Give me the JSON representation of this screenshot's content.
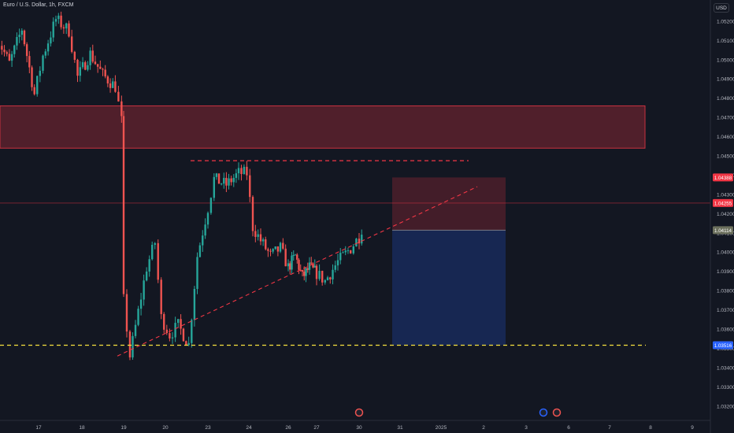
{
  "title": "Euro / U.S. Dollar, 1h, FXCM",
  "currency_label": "USD",
  "colors": {
    "background": "#131722",
    "up": "#26a69a",
    "down": "#ef5350",
    "axis_text": "#b2b5be",
    "zone_fill": "rgba(242,54,69,0.28)",
    "zone_border": "#c9323f",
    "stop_fill": "rgba(242,54,69,0.22)",
    "target_fill": "rgba(41,98,255,0.22)",
    "support_line": "#f7e23e",
    "trend_line": "#f23645"
  },
  "chart_data": {
    "type": "candlestick",
    "symbol": "EURUSD",
    "timeframe": "1h",
    "x_axis_ticks": [
      "17",
      "18",
      "19",
      "20",
      "23",
      "24",
      "26",
      "27",
      "30",
      "31",
      "2025",
      "2",
      "3",
      "6",
      "7",
      "8",
      "9"
    ],
    "y_axis_ticks": [
      "1.05200",
      "1.05100",
      "1.05000",
      "1.04900",
      "1.04800",
      "1.04700",
      "1.04600",
      "1.04500",
      "1.04400",
      "1.04300",
      "1.04200",
      "1.04100",
      "1.04000",
      "1.03900",
      "1.03800",
      "1.03700",
      "1.03600",
      "1.03500",
      "1.03400",
      "1.03300",
      "1.03200",
      "1.03100"
    ],
    "ylim": [
      1.0306,
      1.0531
    ],
    "price_labels": {
      "stop": "1.04388",
      "current": "1.04255",
      "entry": "1.04114",
      "target": "1.03516"
    },
    "resistance_zone": [
      1.0454,
      1.0476
    ],
    "support_level": 1.03516,
    "horizontal_resistance": 1.04475,
    "trend_line": {
      "from": [
        19.0,
        1.0346
      ],
      "to": [
        31.7,
        1.0434
      ]
    },
    "position": {
      "type": "long",
      "entry": 1.04114,
      "stop": 1.04388,
      "target": 1.03516
    },
    "path": [
      [
        16.0,
        1.0512
      ],
      [
        16.3,
        1.0498
      ],
      [
        16.6,
        1.0516
      ],
      [
        16.9,
        1.0482
      ],
      [
        17.1,
        1.0502
      ],
      [
        17.4,
        1.0521
      ],
      [
        17.7,
        1.0515
      ],
      [
        17.9,
        1.0491
      ],
      [
        18.2,
        1.0503
      ],
      [
        18.5,
        1.0492
      ],
      [
        18.8,
        1.0486
      ],
      [
        18.95,
        1.0468
      ],
      [
        19.0,
        1.0375
      ],
      [
        19.15,
        1.0346
      ],
      [
        19.35,
        1.0369
      ],
      [
        19.55,
        1.0392
      ],
      [
        19.75,
        1.0405
      ],
      [
        19.9,
        1.0366
      ],
      [
        20.1,
        1.0357
      ],
      [
        20.3,
        1.0362
      ],
      [
        20.55,
        1.0352
      ],
      [
        20.75,
        1.0398
      ],
      [
        21.0,
        1.0423
      ],
      [
        21.15,
        1.0438
      ],
      [
        21.45,
        1.0435
      ],
      [
        21.75,
        1.0441
      ],
      [
        21.95,
        1.0441
      ],
      [
        22.1,
        1.0413
      ],
      [
        22.3,
        1.0406
      ],
      [
        22.55,
        1.0398
      ],
      [
        22.8,
        1.0402
      ],
      [
        23.0,
        1.0392
      ],
      [
        23.25,
        1.0398
      ],
      [
        23.5,
        1.0387
      ],
      [
        23.75,
        1.0392
      ],
      [
        24.0,
        1.0389
      ],
      [
        24.2,
        1.0385
      ],
      [
        24.5,
        1.0395
      ],
      [
        24.8,
        1.0402
      ],
      [
        25.0,
        1.0408
      ],
      [
        25.25,
        1.0425
      ],
      [
        25.5,
        1.0418
      ],
      [
        25.75,
        1.0412
      ],
      [
        25.95,
        1.0418
      ],
      [
        26.15,
        1.0435
      ],
      [
        26.3,
        1.0421
      ],
      [
        26.45,
        1.0418
      ],
      [
        26.6,
        1.0428
      ],
      [
        26.75,
        1.0425
      ]
    ]
  }
}
